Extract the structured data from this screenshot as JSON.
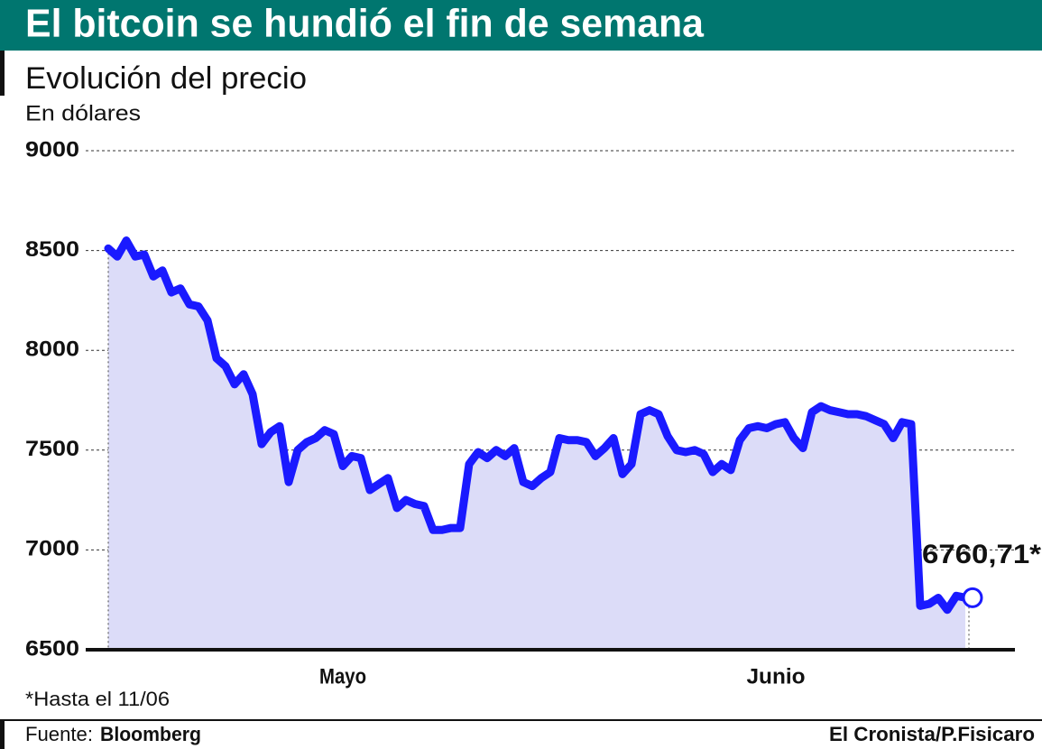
{
  "chart_data": {
    "type": "line",
    "title": "El bitcoin se hundió el fin de semana",
    "subtitle": "Evolución del precio",
    "ylabel": "En dólares",
    "annotation": "6760,71*",
    "footnote": "*Hasta el 11/06",
    "source_label": "Fuente:",
    "source": "Bloomberg",
    "credit": "El Cronista/P.Fisicaro",
    "categories": [
      null,
      null,
      null,
      null,
      null,
      null,
      null,
      null,
      null,
      null,
      null,
      null,
      null,
      null,
      null,
      null,
      null,
      null,
      null,
      null,
      null,
      null,
      null,
      null,
      null,
      null,
      "Mayo",
      null,
      null,
      null,
      null,
      null,
      null,
      null,
      null,
      null,
      null,
      null,
      null,
      null,
      null,
      null,
      null,
      null,
      null,
      null,
      null,
      null,
      null,
      null,
      null,
      null,
      null,
      null,
      null,
      null,
      null,
      null,
      null,
      null,
      null,
      null,
      null,
      null,
      null,
      null,
      null,
      null,
      null,
      null,
      null,
      null,
      null,
      null,
      "Junio",
      null,
      null,
      null,
      null,
      null,
      null,
      null,
      null,
      null,
      null,
      null,
      null,
      null,
      null,
      null,
      null,
      null,
      null,
      null,
      null,
      null
    ],
    "series": [
      {
        "name": "Bitcoin",
        "color": "#1a1aff",
        "values": [
          8510,
          8470,
          8550,
          8470,
          8480,
          8370,
          8400,
          8290,
          8310,
          8230,
          8220,
          8150,
          7960,
          7920,
          7830,
          7880,
          7780,
          7530,
          7590,
          7620,
          7340,
          7500,
          7540,
          7560,
          7600,
          7580,
          7420,
          7470,
          7460,
          7300,
          7330,
          7360,
          7210,
          7250,
          7230,
          7220,
          7100,
          7100,
          7110,
          7110,
          7430,
          7490,
          7460,
          7500,
          7470,
          7510,
          7340,
          7320,
          7360,
          7390,
          7560,
          7550,
          7550,
          7540,
          7470,
          7510,
          7560,
          7380,
          7430,
          7680,
          7700,
          7680,
          7570,
          7500,
          7490,
          7500,
          7480,
          7390,
          7430,
          7400,
          7550,
          7610,
          7620,
          7610,
          7630,
          7640,
          7560,
          7510,
          7690,
          7720,
          7700,
          7690,
          7680,
          7680,
          7670,
          7650,
          7630,
          7560,
          7640,
          7630,
          6720,
          6730,
          6760,
          6700,
          6770,
          6760.71
        ]
      }
    ],
    "ylim": [
      6500,
      9000
    ],
    "yticks": [
      6500,
      7000,
      7500,
      8000,
      8500,
      9000
    ],
    "grid": true,
    "area_color": "#dcdcf8"
  }
}
